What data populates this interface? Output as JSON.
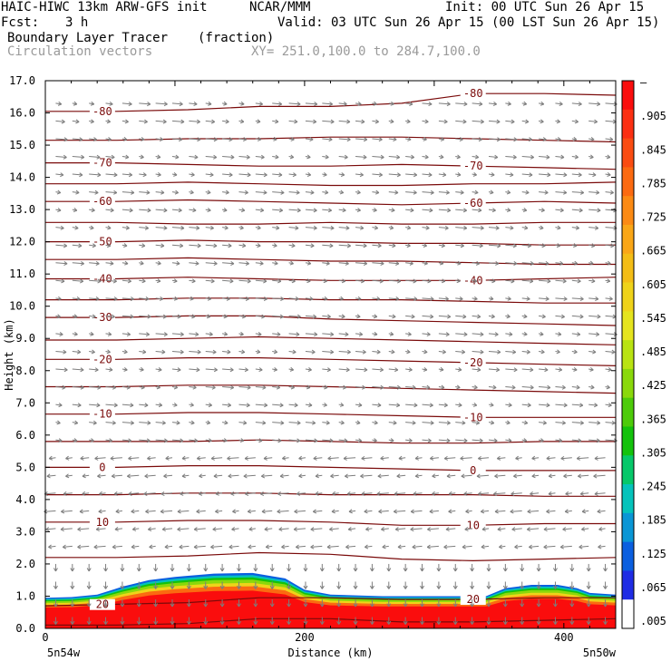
{
  "header": {
    "model": "HAIC-HIWC 13km ARW-GFS init",
    "org": "NCAR/MMM",
    "init": "Init: 00 UTC Sun 26 Apr 15",
    "fcst_label": "Fcst:",
    "fcst_value": "3 h",
    "valid": "Valid: 03 UTC Sun 26 Apr 15 (00 LST Sun 26 Apr 15)",
    "field": "Boundary Layer Tracer",
    "field_units": "(fraction)",
    "vectors": "Circulation vectors",
    "xy": "XY= 251.0,100.0 to 284.7,100.0"
  },
  "chart_data": {
    "type": "heatmap",
    "xlabel": "Distance (km)",
    "ylabel": "Height (km)",
    "xlim": [
      0,
      440
    ],
    "ylim": [
      0,
      17
    ],
    "x_ticks": [
      0,
      200,
      400
    ],
    "x_tick_labels": [
      "0",
      "200",
      "400"
    ],
    "y_ticks": [
      0,
      1,
      2,
      3,
      4,
      5,
      6,
      7,
      8,
      9,
      10,
      11,
      12,
      13,
      14,
      15,
      16,
      17
    ],
    "y_tick_labels": [
      "0.0",
      "1.0",
      "2.0",
      "3.0",
      "4.0",
      "5.0",
      "6.0",
      "7.0",
      "8.0",
      "9.0",
      "10.0",
      "11.0",
      "12.0",
      "13.0",
      "14.0",
      "15.0",
      "16.0",
      "17.0"
    ],
    "x_endpoints": {
      "left": "5n54w",
      "right": "5n50w"
    },
    "colorbar": {
      "labels": [
        "–",
        ".905",
        ".845",
        ".785",
        ".725",
        ".665",
        ".605",
        ".545",
        ".485",
        ".425",
        ".365",
        ".305",
        ".245",
        ".185",
        ".125",
        ".065",
        ".005"
      ],
      "colors": [
        "#fa0d0d",
        "#fb2f12",
        "#fa4c12",
        "#fb6a11",
        "#fb8a14",
        "#f9a617",
        "#f3bd16",
        "#efd31a",
        "#e5e41e",
        "#b9e312",
        "#8ad80b",
        "#4dcb0a",
        "#13c20c",
        "#06c86a",
        "#05c3bb",
        "#0a96d5",
        "#0b5fe0",
        "#1f2ce4",
        "#ffffff"
      ]
    },
    "tracer_top_km": [
      [
        0,
        0.95
      ],
      [
        20,
        0.97
      ],
      [
        40,
        1.05
      ],
      [
        60,
        1.3
      ],
      [
        80,
        1.5
      ],
      [
        100,
        1.6
      ],
      [
        130,
        1.7
      ],
      [
        160,
        1.72
      ],
      [
        185,
        1.55
      ],
      [
        200,
        1.2
      ],
      [
        220,
        1.05
      ],
      [
        260,
        1.0
      ],
      [
        300,
        1.0
      ],
      [
        340,
        1.0
      ],
      [
        355,
        1.25
      ],
      [
        375,
        1.35
      ],
      [
        395,
        1.35
      ],
      [
        410,
        1.25
      ],
      [
        420,
        1.1
      ],
      [
        440,
        1.05
      ]
    ],
    "contours": [
      {
        "level": -80,
        "labels": [
          "-80",
          "-80"
        ],
        "km": [
          16.05,
          16.05,
          16.1,
          16.2,
          16.2,
          16.3,
          16.6,
          16.6,
          16.55
        ]
      },
      {
        "level": -75,
        "labels": [],
        "km": [
          15.15,
          15.15,
          15.2,
          15.2,
          15.25,
          15.25,
          15.2,
          15.15,
          15.1
        ]
      },
      {
        "level": -70,
        "labels": [
          "-70",
          "-70"
        ],
        "km": [
          14.45,
          14.45,
          14.4,
          14.35,
          14.35,
          14.4,
          14.35,
          14.3,
          14.25
        ]
      },
      {
        "level": -65,
        "labels": [],
        "km": [
          13.8,
          13.8,
          13.85,
          13.8,
          13.75,
          13.75,
          13.8,
          13.8,
          13.85
        ]
      },
      {
        "level": -60,
        "labels": [
          "-60",
          "-60"
        ],
        "km": [
          13.25,
          13.25,
          13.3,
          13.25,
          13.2,
          13.15,
          13.2,
          13.25,
          13.2
        ]
      },
      {
        "level": -55,
        "labels": [],
        "km": [
          12.6,
          12.6,
          12.55,
          12.55,
          12.6,
          12.55,
          12.55,
          12.6,
          12.6
        ]
      },
      {
        "level": -50,
        "labels": [
          "-50"
        ],
        "km": [
          12.0,
          12.0,
          12.05,
          12.0,
          12.0,
          11.95,
          11.95,
          11.9,
          11.9
        ]
      },
      {
        "level": -45,
        "labels": [],
        "km": [
          11.45,
          11.45,
          11.5,
          11.45,
          11.4,
          11.4,
          11.35,
          11.3,
          11.3
        ]
      },
      {
        "level": -40,
        "labels": [
          "-40",
          "-40"
        ],
        "km": [
          10.85,
          10.85,
          10.9,
          10.85,
          10.8,
          10.8,
          10.8,
          10.85,
          10.9
        ]
      },
      {
        "level": -35,
        "labels": [],
        "km": [
          10.2,
          10.2,
          10.25,
          10.25,
          10.2,
          10.2,
          10.15,
          10.1,
          10.1
        ]
      },
      {
        "level": -30,
        "labels": [
          "-30"
        ],
        "km": [
          9.65,
          9.65,
          9.7,
          9.7,
          9.6,
          9.55,
          9.5,
          9.45,
          9.4
        ]
      },
      {
        "level": -25,
        "labels": [],
        "km": [
          8.95,
          8.95,
          9.0,
          9.05,
          9.0,
          8.95,
          8.9,
          8.85,
          8.8
        ]
      },
      {
        "level": -20,
        "labels": [
          "-20",
          "-20"
        ],
        "km": [
          8.35,
          8.35,
          8.4,
          8.4,
          8.35,
          8.3,
          8.25,
          8.2,
          8.15
        ]
      },
      {
        "level": -15,
        "labels": [],
        "km": [
          7.5,
          7.5,
          7.55,
          7.55,
          7.5,
          7.45,
          7.4,
          7.35,
          7.3
        ]
      },
      {
        "level": -10,
        "labels": [
          "-10",
          "-10"
        ],
        "km": [
          6.65,
          6.65,
          6.7,
          6.7,
          6.65,
          6.6,
          6.55,
          6.55,
          6.55
        ]
      },
      {
        "level": -5,
        "labels": [],
        "km": [
          5.8,
          5.8,
          5.8,
          5.85,
          5.8,
          5.75,
          5.75,
          5.8,
          5.8
        ]
      },
      {
        "level": 0,
        "labels": [
          "0",
          "0"
        ],
        "km": [
          5.0,
          5.0,
          5.05,
          5.05,
          5.0,
          4.95,
          4.9,
          4.9,
          4.9
        ]
      },
      {
        "level": 5,
        "labels": [],
        "km": [
          4.15,
          4.15,
          4.2,
          4.2,
          4.15,
          4.15,
          4.15,
          4.1,
          4.1
        ]
      },
      {
        "level": 10,
        "labels": [
          "10",
          "10"
        ],
        "km": [
          3.3,
          3.3,
          3.35,
          3.35,
          3.3,
          3.2,
          3.2,
          3.25,
          3.25
        ]
      },
      {
        "level": 15,
        "labels": [],
        "km": [
          2.2,
          2.2,
          2.25,
          2.35,
          2.3,
          2.15,
          2.1,
          2.15,
          2.2
        ]
      },
      {
        "level": 20,
        "labels": [
          "20",
          "20"
        ],
        "km": [
          0.7,
          0.75,
          0.8,
          0.95,
          0.95,
          0.9,
          0.9,
          0.95,
          0.95
        ]
      },
      {
        "level": 25,
        "labels": [],
        "km": [
          0.1,
          0.1,
          0.15,
          0.3,
          0.3,
          0.2,
          0.2,
          0.25,
          0.3
        ]
      }
    ]
  }
}
